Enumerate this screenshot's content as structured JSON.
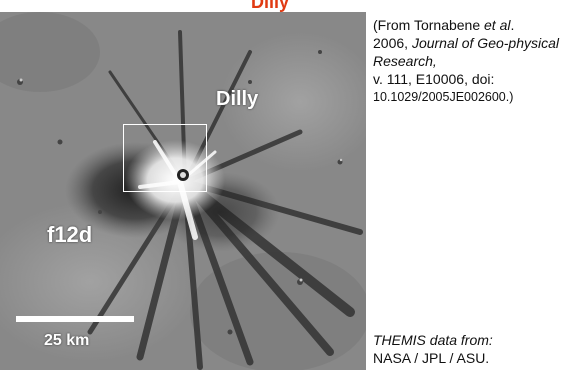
{
  "title": "Dilly",
  "image": {
    "crater_label": "Dilly",
    "region_label": "f12d",
    "scale_label": "25 km"
  },
  "citation": {
    "open": "(From Tornabene ",
    "etal": "et al",
    "dot": ".",
    "year": "2006, ",
    "journal": "Journal of Geo-physical Research,",
    "volume": "v. 111, E10006, doi:",
    "doi": "10.1029/2005JE002600.)"
  },
  "credit": {
    "line1": "THEMIS data from:",
    "line2": "NASA / JPL / ASU."
  }
}
